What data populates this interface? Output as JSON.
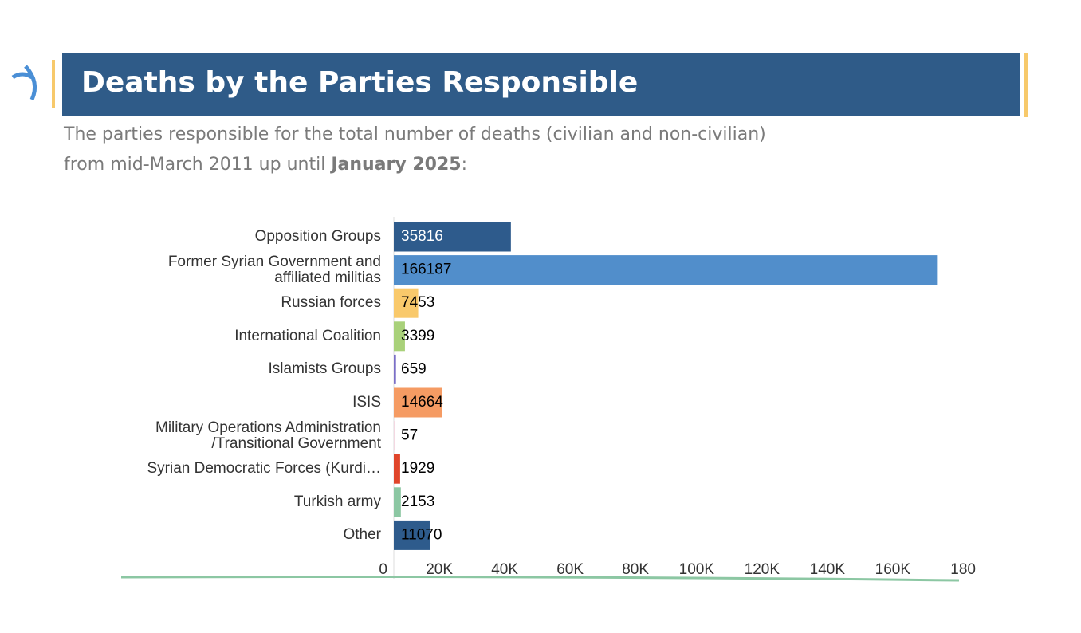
{
  "header": {
    "title": "Deaths by the Parties Responsible",
    "subtitle_line1": "The parties responsible for the total number of deaths (civilian and non-civilian)",
    "subtitle_line2": "from mid-March 2011 up until",
    "subtitle_bold": "January 2025",
    "subtitle_end": ":"
  },
  "chart_data": {
    "type": "bar",
    "orientation": "horizontal",
    "categories": [
      "Opposition Groups",
      "Former Syrian Government and affiliated militias",
      "Russian forces",
      "International Coalition",
      "Islamists Groups",
      "ISIS",
      "Military Operations Administration /Transitional Government",
      "Syrian Democratic Forces (Kurdi…",
      "Turkish army",
      "Other"
    ],
    "values": [
      35816,
      166187,
      7453,
      3399,
      659,
      14664,
      57,
      1929,
      2153,
      11070
    ],
    "colors": [
      "#2e5b8c",
      "#518ecb",
      "#f9c96b",
      "#a9d17a",
      "#7b6fc7",
      "#f59b63",
      "#e8b0c6",
      "#e0452a",
      "#8cc7a3",
      "#2e5b8c"
    ],
    "xlim": [
      0,
      180000
    ],
    "xticks": [
      0,
      {
        "value": 20000,
        "label": "20K"
      },
      {
        "value": 40000,
        "label": "40K"
      },
      {
        "value": 60000,
        "label": "60K"
      },
      {
        "value": 80000,
        "label": "80K"
      },
      {
        "value": 100000,
        "label": "100K"
      },
      {
        "value": 120000,
        "label": "120K"
      },
      {
        "value": 140000,
        "label": "140K"
      },
      {
        "value": 160000,
        "label": "160K"
      },
      {
        "value": 180000,
        "label": "180"
      }
    ],
    "grid": false
  }
}
